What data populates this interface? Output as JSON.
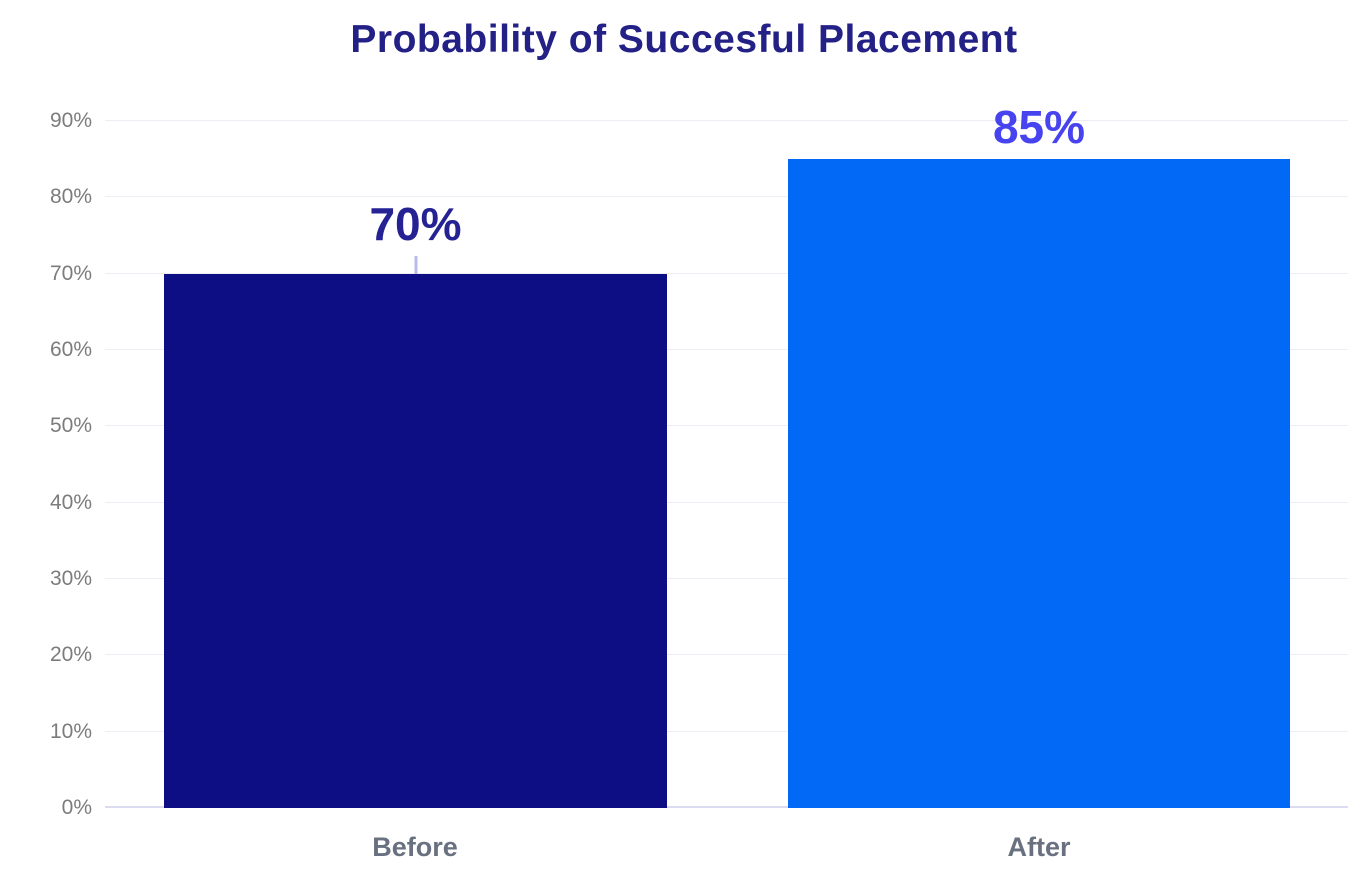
{
  "chart_data": {
    "type": "bar",
    "title": "Probability of Succesful Placement",
    "categories": [
      "Before",
      "After"
    ],
    "values": [
      70,
      85
    ],
    "data_labels": [
      "70%",
      "85%"
    ],
    "ylim": [
      0,
      90
    ],
    "yticks": [
      "0%",
      "10%",
      "20%",
      "30%",
      "40%",
      "50%",
      "60%",
      "70%",
      "80%",
      "90%"
    ],
    "xlabel": "",
    "ylabel": "",
    "grid": "horizontal-only",
    "legend": "none",
    "bar_colors": [
      "#0d0d84",
      "#0269f7"
    ],
    "data_label_colors": [
      "#252293",
      "#4743ef"
    ]
  },
  "colors": {
    "background": "#ffffff",
    "title": "#232086",
    "ytick_label": "#7c7c7c",
    "category_label": "#697180",
    "gridline": "#eeedf3",
    "baseline": "#dbdcf0",
    "leader_tick": "#b9bce8"
  }
}
